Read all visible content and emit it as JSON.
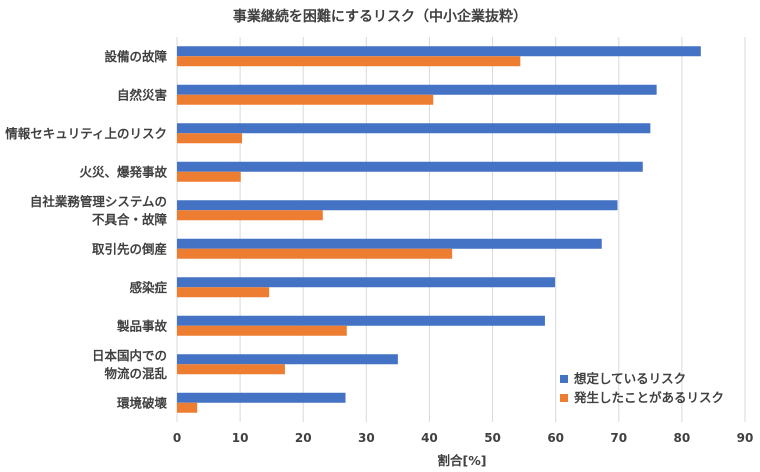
{
  "chart_data": {
    "type": "bar",
    "orientation": "horizontal",
    "title": "事業継続を困難にするリスク（中小企業抜粋）",
    "xlabel": "割合[%]",
    "ylabel": "",
    "xlim": [
      0,
      90
    ],
    "xticks": [
      0,
      10,
      20,
      30,
      40,
      50,
      60,
      70,
      80,
      90
    ],
    "grid": true,
    "legend_position": "bottom-right",
    "categories": [
      [
        "設備の故障"
      ],
      [
        "自然災害"
      ],
      [
        "情報セキュリティ上のリスク"
      ],
      [
        "火災、爆発事故"
      ],
      [
        "自社業務管理システムの",
        "不具合・故障"
      ],
      [
        "取引先の倒産"
      ],
      [
        "感染症"
      ],
      [
        "製品事故"
      ],
      [
        "日本国内での",
        "物流の混乱"
      ],
      [
        "環境破壊"
      ]
    ],
    "series": [
      {
        "name": "想定しているリスク",
        "color": "#4472C4",
        "values": [
          83.0,
          76.0,
          75.0,
          73.8,
          69.8,
          67.3,
          59.9,
          58.3,
          35.0,
          26.7
        ]
      },
      {
        "name": "発生したことがあるリスク",
        "color": "#ED7D31",
        "values": [
          54.4,
          40.6,
          10.3,
          10.1,
          23.1,
          43.6,
          14.6,
          26.9,
          17.1,
          3.2
        ]
      }
    ]
  }
}
